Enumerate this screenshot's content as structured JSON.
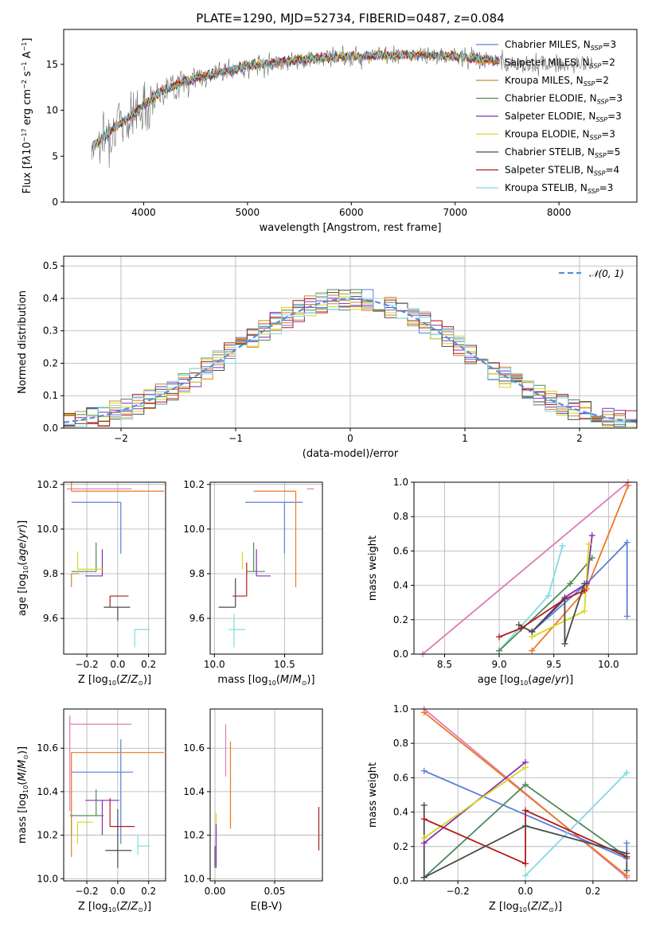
{
  "figure": {
    "title": "PLATE=1290, MJD=52734, FIBERID=0487, z=0.084"
  },
  "models": [
    {
      "name": "Chabrier MILES",
      "nssp": "3",
      "color": "#5b7fd9"
    },
    {
      "name": "Salpeter MILES",
      "nssp": "2",
      "color": "#ee7621"
    },
    {
      "name": "Kroupa MILES",
      "nssp": "2",
      "color": "#c88a2e"
    },
    {
      "name": "Chabrier ELODIE",
      "nssp": "3",
      "color": "#4f8a5a"
    },
    {
      "name": "Salpeter ELODIE",
      "nssp": "3",
      "color": "#8a2bb5"
    },
    {
      "name": "Kroupa ELODIE",
      "nssp": "3",
      "color": "#d4d81f"
    },
    {
      "name": "Chabrier STELIB",
      "nssp": "5",
      "color": "#4a4a4a"
    },
    {
      "name": "Salpeter STELIB",
      "nssp": "4",
      "color": "#b01c1c"
    },
    {
      "name": "Kroupa STELIB",
      "nssp": "3",
      "color": "#7fdbe0"
    }
  ],
  "chart_data": [
    {
      "type": "line",
      "id": "spectrum",
      "xlabel": "wavelength [Angstrom, rest frame]",
      "ylabel_html": "Flux [f<tspan font-style='italic'>λ</tspan>10<tspan dy='-5' font-size='8'>−17</tspan><tspan dy='5'> erg cm</tspan><tspan dy='-5' font-size='8'>−2</tspan><tspan dy='5'> s</tspan><tspan dy='-5' font-size='8'>−1</tspan><tspan dy='5'> A</tspan><tspan dy='-5' font-size='8'>−1</tspan><tspan dy='5'>]</tspan>",
      "xlim": [
        3230,
        8750
      ],
      "ylim": [
        0,
        18.8
      ],
      "xticks": [
        4000,
        5000,
        6000,
        7000,
        8000
      ],
      "yticks": [
        0,
        5,
        10,
        15
      ],
      "grid": false,
      "legend": "right",
      "continuum": [
        [
          3500,
          6.0
        ],
        [
          3700,
          8.0
        ],
        [
          3900,
          9.5
        ],
        [
          4000,
          10.5
        ],
        [
          4200,
          12.3
        ],
        [
          4500,
          13.5
        ],
        [
          5000,
          14.8
        ],
        [
          5500,
          15.5
        ],
        [
          6000,
          15.9
        ],
        [
          6500,
          16.0
        ],
        [
          7000,
          15.9
        ],
        [
          7400,
          15.4
        ]
      ],
      "observed_range": [
        3500,
        8320
      ],
      "model_range": [
        3500,
        7420
      ]
    },
    {
      "type": "histogram",
      "id": "residuals",
      "xlabel": "(data-model)/error",
      "ylabel": "Normed distribution",
      "xlim": [
        -2.5,
        2.5
      ],
      "ylim": [
        0,
        0.53
      ],
      "xticks": [
        -2,
        -1,
        0,
        1,
        2
      ],
      "yticks": [
        0,
        0.1,
        0.2,
        0.3,
        0.4,
        0.5
      ],
      "grid": true,
      "legend": "top-right",
      "reference": {
        "label": "𝒩(0, 1)",
        "mean": 0,
        "sigma": 1,
        "color": "#5b8dd6"
      },
      "bin_width": 0.1
    },
    {
      "type": "scatter",
      "id": "z-vs-age",
      "xlabel_html": "Z [log<tspan dy='3' font-size='8'>10</tspan><tspan dy='-3'>(</tspan><tspan font-style='italic'>Z</tspan>/<tspan font-style='italic'>Z</tspan><tspan dy='3' font-size='8'>⊙</tspan><tspan dy='-3'>)]</tspan>",
      "ylabel_html": "age  [log<tspan dy='3' font-size='8'>10</tspan><tspan dy='-3'>(</tspan><tspan font-style='italic'>age</tspan>/<tspan font-style='italic'>yr</tspan>)]",
      "xlim": [
        -0.35,
        0.31
      ],
      "ylim": [
        9.44,
        10.21
      ],
      "xticks": [
        -0.2,
        0.0,
        0.2
      ],
      "yticks": [
        9.6,
        9.8,
        10.0,
        10.2
      ],
      "grid": true,
      "errorbars": [
        {
          "model": 0,
          "x": 0.02,
          "xerr": [
            0.32,
            0.0
          ],
          "y": 10.12,
          "yerr": [
            0.23,
            0.0
          ]
        },
        {
          "model": 1,
          "x": -0.3,
          "xerr": [
            0.0,
            0.6
          ],
          "y": 10.17,
          "yerr": [
            0.0,
            0.43
          ]
        },
        {
          "model": 4,
          "x": -0.1,
          "xerr": [
            0.11,
            0.0
          ],
          "y": 9.79,
          "yerr": [
            0.0,
            0.12
          ]
        },
        {
          "model": 3,
          "x": -0.14,
          "xerr": [
            0.16,
            0.0
          ],
          "y": 9.81,
          "yerr": [
            0.0,
            0.13
          ]
        },
        {
          "model": 5,
          "x": -0.26,
          "xerr": [
            0.0,
            0.17
          ],
          "y": 9.82,
          "yerr": [
            0.0,
            0.08
          ]
        },
        {
          "model": 7,
          "x": -0.05,
          "xerr": [
            0.0,
            0.12
          ],
          "y": 9.7,
          "yerr": [
            0.05,
            0.0
          ]
        },
        {
          "model": 6,
          "x": 0.0,
          "xerr": [
            0.09,
            0.08
          ],
          "y": 9.65,
          "yerr": [
            0.06,
            0.0
          ]
        },
        {
          "model": 8,
          "x": 0.11,
          "xerr": [
            0.0,
            0.1
          ],
          "y": 9.55,
          "yerr": [
            0.08,
            0.0
          ]
        },
        {
          "model": 2,
          "x": -0.3,
          "xerr": [
            0.0,
            0.05
          ],
          "y": 9.8,
          "yerr": [
            0.06,
            0.0
          ]
        },
        {
          "model": 9,
          "x": -0.33,
          "xerr": [
            0.0,
            0.42
          ],
          "y": 10.18,
          "yerr": [
            0.0,
            0.0
          ]
        }
      ]
    },
    {
      "type": "scatter",
      "id": "mass-vs-age",
      "xlabel_html": "mass [log<tspan dy='3' font-size='8'>10</tspan><tspan dy='-3'>(</tspan><tspan font-style='italic'>M</tspan>/<tspan font-style='italic'>M</tspan><tspan dy='3' font-size='8'>⊙</tspan><tspan dy='-3'>)]</tspan>",
      "xlim": [
        9.97,
        10.77
      ],
      "ylim": [
        9.44,
        10.21
      ],
      "xticks": [
        10.0,
        10.5
      ],
      "yticks": [
        9.6,
        9.8,
        10.0,
        10.2
      ],
      "grid": true,
      "errorbars": [
        {
          "model": 0,
          "x": 10.5,
          "xerr": [
            0.28,
            0.13
          ],
          "y": 10.12,
          "yerr": [
            0.23,
            0.0
          ]
        },
        {
          "model": 1,
          "x": 10.58,
          "xerr": [
            0.3,
            0.0
          ],
          "y": 10.17,
          "yerr": [
            0.43,
            0.0
          ]
        },
        {
          "model": 4,
          "x": 10.3,
          "xerr": [
            0.0,
            0.1
          ],
          "y": 9.79,
          "yerr": [
            0.0,
            0.12
          ]
        },
        {
          "model": 3,
          "x": 10.28,
          "xerr": [
            0.05,
            0.08
          ],
          "y": 9.81,
          "yerr": [
            0.0,
            0.13
          ]
        },
        {
          "model": 5,
          "x": 10.2,
          "xerr": [
            0.0,
            0.0
          ],
          "y": 9.82,
          "yerr": [
            0.0,
            0.08
          ]
        },
        {
          "model": 7,
          "x": 10.23,
          "xerr": [
            0.1,
            0.0
          ],
          "y": 9.7,
          "yerr": [
            0.0,
            0.15
          ]
        },
        {
          "model": 6,
          "x": 10.15,
          "xerr": [
            0.12,
            0.0
          ],
          "y": 9.65,
          "yerr": [
            0.0,
            0.13
          ]
        },
        {
          "model": 8,
          "x": 10.14,
          "xerr": [
            0.04,
            0.08
          ],
          "y": 9.55,
          "yerr": [
            0.08,
            0.07
          ]
        },
        {
          "model": 9,
          "x": 10.71,
          "xerr": [
            0.05,
            0.0
          ],
          "y": 10.18,
          "yerr": [
            0.0,
            0.0
          ]
        }
      ]
    },
    {
      "type": "line",
      "id": "cum-weight-age",
      "xlabel_html": "age  [log<tspan dy='3' font-size='8'>10</tspan><tspan dy='-3'>(</tspan><tspan font-style='italic'>age</tspan>/<tspan font-style='italic'>yr</tspan>)]",
      "ylabel": "mass weight",
      "xlim": [
        8.22,
        10.26
      ],
      "ylim": [
        0,
        1.0
      ],
      "xticks": [
        8.5,
        9.0,
        9.5,
        10.0
      ],
      "yticks": [
        0.0,
        0.2,
        0.4,
        0.6,
        0.8,
        1.0
      ],
      "grid": true,
      "series": [
        {
          "model": 9,
          "x": [
            8.3,
            10.18
          ],
          "y": [
            0.0,
            1.0
          ]
        },
        {
          "model": 1,
          "x": [
            9.3,
            9.8,
            10.18
          ],
          "y": [
            0.02,
            0.38,
            0.98
          ]
        },
        {
          "model": 0,
          "x": [
            9.3,
            9.8,
            10.17,
            10.17
          ],
          "y": [
            0.13,
            0.41,
            0.65,
            0.22
          ]
        },
        {
          "model": 8,
          "x": [
            9.0,
            9.45,
            9.58
          ],
          "y": [
            0.02,
            0.34,
            0.63
          ]
        },
        {
          "model": 4,
          "x": [
            9.3,
            9.6,
            9.8,
            9.85
          ],
          "y": [
            0.13,
            0.33,
            0.41,
            0.69
          ]
        },
        {
          "model": 3,
          "x": [
            9.0,
            9.65,
            9.85
          ],
          "y": [
            0.02,
            0.41,
            0.56
          ]
        },
        {
          "model": 5,
          "x": [
            9.3,
            9.78,
            9.82
          ],
          "y": [
            0.1,
            0.25,
            0.64
          ]
        },
        {
          "model": 7,
          "x": [
            9.0,
            9.2,
            9.6,
            9.78
          ],
          "y": [
            0.1,
            0.15,
            0.32,
            0.37
          ]
        },
        {
          "model": 6,
          "x": [
            9.18,
            9.3,
            9.6,
            9.6,
            9.78
          ],
          "y": [
            0.17,
            0.13,
            0.32,
            0.06,
            0.41
          ]
        }
      ]
    },
    {
      "type": "scatter",
      "id": "z-vs-mass",
      "xlabel_html": "Z [log<tspan dy='3' font-size='8'>10</tspan><tspan dy='-3'>(</tspan><tspan font-style='italic'>Z</tspan>/<tspan font-style='italic'>Z</tspan><tspan dy='3' font-size='8'>⊙</tspan><tspan dy='-3'>)]</tspan>",
      "ylabel_html": "mass [log<tspan dy='3' font-size='8'>10</tspan><tspan dy='-3'>(</tspan><tspan font-style='italic'>M</tspan>/<tspan font-style='italic'>M</tspan><tspan dy='3' font-size='8'>⊙</tspan><tspan dy='-3'>)]</tspan>",
      "xlim": [
        -0.35,
        0.31
      ],
      "ylim": [
        9.99,
        10.78
      ],
      "xticks": [
        -0.2,
        0.0,
        0.2
      ],
      "yticks": [
        10.0,
        10.2,
        10.4,
        10.6
      ],
      "grid": true,
      "errorbars": [
        {
          "model": 0,
          "x": 0.02,
          "xerr": [
            0.32,
            0.08
          ],
          "y": 10.49,
          "yerr": [
            0.33,
            0.15
          ]
        },
        {
          "model": 1,
          "x": -0.3,
          "xerr": [
            0.0,
            0.6
          ],
          "y": 10.58,
          "yerr": [
            0.38,
            0.0
          ]
        },
        {
          "model": 9,
          "x": -0.31,
          "xerr": [
            0.0,
            0.4
          ],
          "y": 10.71,
          "yerr": [
            0.4,
            0.04
          ]
        },
        {
          "model": 4,
          "x": -0.1,
          "xerr": [
            0.11,
            0.11
          ],
          "y": 10.36,
          "yerr": [
            0.16,
            0.0
          ]
        },
        {
          "model": 3,
          "x": -0.14,
          "xerr": [
            0.17,
            0.05
          ],
          "y": 10.29,
          "yerr": [
            0.0,
            0.12
          ]
        },
        {
          "model": 5,
          "x": -0.26,
          "xerr": [
            0.0,
            0.1
          ],
          "y": 10.26,
          "yerr": [
            0.1,
            0.0
          ]
        },
        {
          "model": 7,
          "x": -0.05,
          "xerr": [
            0.0,
            0.16
          ],
          "y": 10.24,
          "yerr": [
            0.0,
            0.13
          ]
        },
        {
          "model": 6,
          "x": 0.0,
          "xerr": [
            0.08,
            0.09
          ],
          "y": 10.13,
          "yerr": [
            0.08,
            0.19
          ]
        },
        {
          "model": 8,
          "x": 0.13,
          "xerr": [
            0.0,
            0.08
          ],
          "y": 10.15,
          "yerr": [
            0.04,
            0.05
          ]
        },
        {
          "model": 2,
          "x": -0.3,
          "xerr": [
            0.0,
            0.0
          ],
          "y": 10.3,
          "yerr": [
            0.2,
            0.0
          ]
        }
      ]
    },
    {
      "type": "scatter",
      "id": "ebv-vs-mass",
      "xlabel": "E(B-V)",
      "xlim": [
        -0.004,
        0.09
      ],
      "ylim": [
        9.99,
        10.78
      ],
      "xticks": [
        0.0,
        0.05
      ],
      "yticks": [
        10.0,
        10.2,
        10.4,
        10.6
      ],
      "grid": true,
      "errorbars": [
        {
          "model": 9,
          "x": 0.009,
          "xerr": [
            0.0,
            0.0
          ],
          "y": 10.59,
          "yerr": [
            0.12,
            0.12
          ]
        },
        {
          "model": 1,
          "x": 0.013,
          "xerr": [
            0.0,
            0.0
          ],
          "y": 10.43,
          "yerr": [
            0.2,
            0.2
          ]
        },
        {
          "model": 5,
          "x": 0.001,
          "xerr": [
            0.0,
            0.0
          ],
          "y": 10.3,
          "yerr": [
            0.12,
            0.0
          ]
        },
        {
          "model": 4,
          "x": 0.001,
          "xerr": [
            0.0,
            0.0
          ],
          "y": 10.15,
          "yerr": [
            0.1,
            0.1
          ]
        },
        {
          "model": 6,
          "x": 0.0,
          "xerr": [
            0.0,
            0.0
          ],
          "y": 10.1,
          "yerr": [
            0.05,
            0.05
          ]
        },
        {
          "model": 7,
          "x": 0.087,
          "xerr": [
            0.0,
            0.0
          ],
          "y": 10.23,
          "yerr": [
            0.1,
            0.1
          ]
        }
      ]
    },
    {
      "type": "line",
      "id": "cum-weight-z",
      "xlabel_html": "Z [log<tspan dy='3' font-size='8'>10</tspan><tspan dy='-3'>(</tspan><tspan font-style='italic'>Z</tspan>/<tspan font-style='italic'>Z</tspan><tspan dy='3' font-size='8'>⊙</tspan><tspan dy='-3'>)]</tspan>",
      "ylabel": "mass weight",
      "xlim": [
        -0.33,
        0.33
      ],
      "ylim": [
        0,
        1.0
      ],
      "xticks": [
        -0.2,
        0.0,
        0.2
      ],
      "yticks": [
        0.0,
        0.2,
        0.4,
        0.6,
        0.8,
        1.0
      ],
      "grid": true,
      "series": [
        {
          "model": 9,
          "x": [
            -0.3,
            0.3
          ],
          "y": [
            1.0,
            0.02
          ]
        },
        {
          "model": 1,
          "x": [
            -0.3,
            0.3
          ],
          "y": [
            0.98,
            0.03
          ]
        },
        {
          "model": 0,
          "x": [
            -0.3,
            0.3,
            0.3
          ],
          "y": [
            0.64,
            0.13,
            0.22
          ]
        },
        {
          "model": 4,
          "x": [
            -0.3,
            0.0
          ],
          "y": [
            0.22,
            0.69
          ]
        },
        {
          "model": 5,
          "x": [
            -0.3,
            0.0
          ],
          "y": [
            0.25,
            0.66
          ]
        },
        {
          "model": 3,
          "x": [
            -0.3,
            0.0,
            0.3
          ],
          "y": [
            0.02,
            0.56,
            0.14
          ]
        },
        {
          "model": 8,
          "x": [
            0.0,
            0.3
          ],
          "y": [
            0.03,
            0.63
          ]
        },
        {
          "model": 7,
          "x": [
            -0.3,
            0.0,
            0.0,
            0.3
          ],
          "y": [
            0.36,
            0.1,
            0.41,
            0.14
          ]
        },
        {
          "model": 6,
          "x": [
            -0.3,
            -0.3,
            0.0,
            0.3,
            0.3
          ],
          "y": [
            0.44,
            0.02,
            0.32,
            0.16,
            0.06
          ]
        }
      ]
    }
  ]
}
